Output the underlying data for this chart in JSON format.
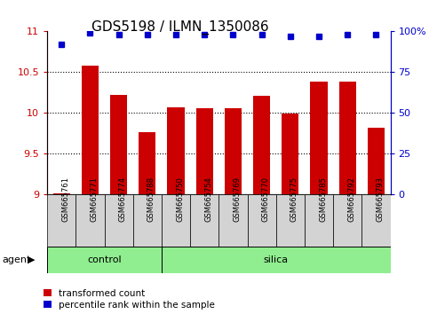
{
  "title": "GDS5198 / ILMN_1350086",
  "samples": [
    "GSM665761",
    "GSM665771",
    "GSM665774",
    "GSM665788",
    "GSM665750",
    "GSM665754",
    "GSM665769",
    "GSM665770",
    "GSM665775",
    "GSM665785",
    "GSM665792",
    "GSM665793"
  ],
  "transformed_count": [
    9.02,
    10.58,
    10.22,
    9.77,
    10.07,
    10.06,
    10.06,
    10.21,
    9.99,
    10.38,
    10.38,
    9.82
  ],
  "percentile_rank": [
    92,
    99,
    98,
    98,
    98,
    98,
    98,
    98,
    97,
    97,
    98,
    98
  ],
  "n_control": 4,
  "n_silica": 8,
  "ylim_left": [
    9.0,
    11.0
  ],
  "ylim_right": [
    0,
    100
  ],
  "yticks_left": [
    9.0,
    9.5,
    10.0,
    10.5,
    11.0
  ],
  "yticks_right": [
    0,
    25,
    50,
    75,
    100
  ],
  "ytick_labels_right": [
    "0",
    "25",
    "50",
    "75",
    "100%"
  ],
  "bar_color": "#cc0000",
  "dot_color": "#0000cc",
  "bar_bottom": 9.0,
  "bar_width": 0.6,
  "group_color": "#90ee90",
  "agent_label": "agent",
  "control_label": "control",
  "silica_label": "silica",
  "legend_tc": "transformed count",
  "legend_pr": "percentile rank within the sample",
  "tick_color_left": "#cc0000",
  "tick_color_right": "#0000cc",
  "title_fontsize": 11,
  "fig_width": 4.83,
  "fig_height": 3.54,
  "fig_dpi": 100
}
